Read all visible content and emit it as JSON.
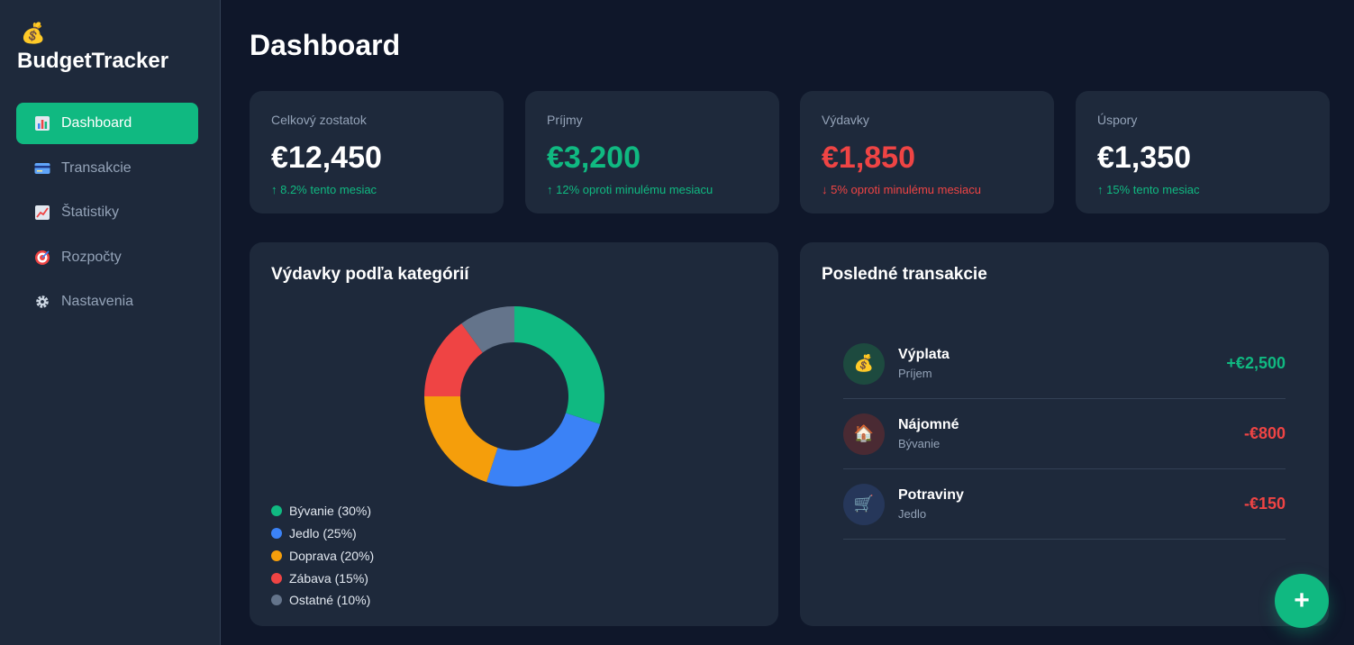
{
  "app": {
    "logo_icon": "money-bag-icon",
    "name": "BudgetTracker"
  },
  "colors": {
    "accent": "#10b981",
    "negative": "#ef4444",
    "blue": "#3b82f6",
    "orange": "#f59e0b",
    "gray": "#64748b"
  },
  "sidebar": {
    "items": [
      {
        "label": "Dashboard",
        "icon": "bar-chart-icon",
        "active": true
      },
      {
        "label": "Transakcie",
        "icon": "credit-card-icon",
        "active": false
      },
      {
        "label": "Štatistiky",
        "icon": "trending-up-chart-icon",
        "active": false
      },
      {
        "label": "Rozpočty",
        "icon": "target-icon",
        "active": false
      },
      {
        "label": "Nastavenia",
        "icon": "gear-icon",
        "active": false
      }
    ]
  },
  "page": {
    "title": "Dashboard"
  },
  "stats": [
    {
      "label": "Celkový zostatok",
      "value": "€12,450",
      "change": "↑ 8.2% tento mesiac",
      "trend": "up"
    },
    {
      "label": "Príjmy",
      "value": "€3,200",
      "change": "↑ 12% oproti minulému mesiacu",
      "trend": "up"
    },
    {
      "label": "Výdavky",
      "value": "€1,850",
      "change": "↓ 5% oproti minulému mesiacu",
      "trend": "down"
    },
    {
      "label": "Úspory",
      "value": "€1,350",
      "change": "↑ 15% tento mesiac",
      "trend": "up"
    }
  ],
  "expenses_panel": {
    "title": "Výdavky podľa kategórií"
  },
  "chart_data": {
    "type": "pie",
    "title": "Výdavky podľa kategórií",
    "categories": [
      "Bývanie",
      "Jedlo",
      "Doprava",
      "Zábava",
      "Ostatné"
    ],
    "values": [
      30,
      25,
      20,
      15,
      10
    ],
    "colors": [
      "#10b981",
      "#3b82f6",
      "#f59e0b",
      "#ef4444",
      "#64748b"
    ],
    "legend": [
      "Bývanie (30%)",
      "Jedlo (25%)",
      "Doprava (20%)",
      "Zábava (15%)",
      "Ostatné (10%)"
    ],
    "legend_placement": "bottom-left",
    "donut": true
  },
  "transactions_panel": {
    "title": "Posledné transakcie",
    "items": [
      {
        "name": "Výplata",
        "category": "Príjem",
        "amount": "+€2,500",
        "icon": "money-bag-icon",
        "type": "income"
      },
      {
        "name": "Nájomné",
        "category": "Bývanie",
        "amount": "-€800",
        "icon": "house-icon",
        "type": "expense"
      },
      {
        "name": "Potraviny",
        "category": "Jedlo",
        "amount": "-€150",
        "icon": "shopping-cart-icon",
        "type": "expense"
      }
    ]
  },
  "fab": {
    "label": "+",
    "icon": "plus-icon"
  }
}
